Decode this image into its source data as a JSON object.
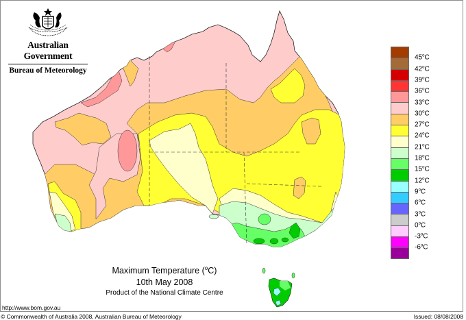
{
  "header": {
    "government": "Australian Government",
    "bureau": "Bureau of Meteorology",
    "crest_icon": "coat-of-arms-icon"
  },
  "map": {
    "title": "Maximum Temperature (",
    "title_unit_deg": "o",
    "title_unit_suffix": "C)",
    "date": "10th May 2008",
    "product": "Product of the National Climate Centre",
    "region": "Australia"
  },
  "legend": {
    "items": [
      {
        "label": "45",
        "color": "#a33c00"
      },
      {
        "label": "42",
        "color": "#a46a38"
      },
      {
        "label": "39",
        "color": "#d40000"
      },
      {
        "label": "36",
        "color": "#ff3535"
      },
      {
        "label": "33",
        "color": "#ff9999"
      },
      {
        "label": "30",
        "color": "#ffcccc"
      },
      {
        "label": "27",
        "color": "#ffcc66"
      },
      {
        "label": "24",
        "color": "#ffff33"
      },
      {
        "label": "21",
        "color": "#ffffcc"
      },
      {
        "label": "18",
        "color": "#ccffcc"
      },
      {
        "label": "15",
        "color": "#66ff66"
      },
      {
        "label": "12",
        "color": "#00cc00"
      },
      {
        "label": "9",
        "color": "#99ffff"
      },
      {
        "label": "6",
        "color": "#33ccff"
      },
      {
        "label": "3",
        "color": "#6666ff"
      },
      {
        "label": "0",
        "color": "#cccccc"
      },
      {
        "label": "-3",
        "color": "#ffccff"
      },
      {
        "label": "-6",
        "color": "#ff00ff"
      },
      {
        "label": "",
        "color": "#990099"
      }
    ],
    "unit": "C",
    "deg": "o"
  },
  "footer": {
    "url": "http://www.bom.gov.au",
    "copyright": "© Commonwealth of Australia 2008, Australian Bureau of Meteorology",
    "issued": "Issued: 08/08/2008"
  },
  "colors": {
    "c33": "#ff9999",
    "c30": "#ffcccc",
    "c27": "#ffcc66",
    "c24": "#ffff33",
    "c21": "#ffffcc",
    "c18": "#ccffcc",
    "c15": "#66ff66",
    "c12": "#00cc00",
    "c9": "#99ffff"
  }
}
